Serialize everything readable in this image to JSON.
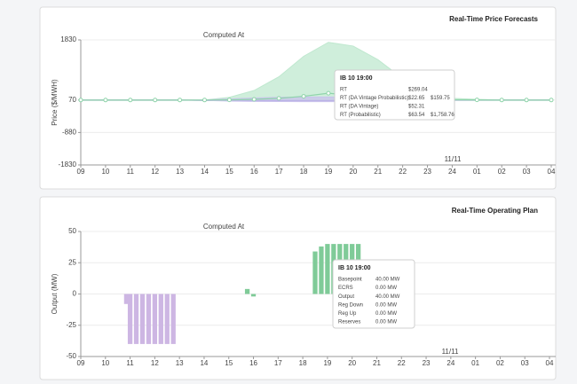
{
  "chart_data": [
    {
      "type": "line",
      "title": "Real-Time Price Forecasts",
      "ylabel": "Price ($/MWH)",
      "annotation": "Computed At",
      "date_label": "11/11",
      "ylim": [
        -1830,
        1830
      ],
      "yticks": [
        1830,
        70,
        -880,
        -1830
      ],
      "grid": true,
      "xlim": [
        9,
        28
      ],
      "xticks": [
        {
          "value": 9,
          "label": "09"
        },
        10,
        11,
        12,
        13,
        14,
        15,
        16,
        17,
        18,
        19,
        20,
        21,
        22,
        23,
        24,
        {
          "value": 25,
          "label": "01"
        },
        {
          "value": 26,
          "label": "02"
        },
        {
          "value": 27,
          "label": "03"
        },
        {
          "value": 28,
          "label": "04"
        }
      ],
      "x": [
        9,
        10,
        11,
        12,
        13,
        14,
        15,
        16,
        17,
        18,
        19,
        20,
        21,
        22,
        23,
        24,
        25,
        26,
        27,
        28
      ],
      "series": [
        {
          "color": "#8fd4aa",
          "markers": true,
          "values": [
            70,
            70,
            70,
            70,
            70,
            70,
            75,
            90,
            120,
            180,
            269.04,
            200,
            150,
            110,
            90,
            80,
            75,
            70,
            70,
            70
          ]
        },
        {
          "color": "#c9c2ec",
          "values": [
            70,
            70,
            70,
            70,
            70,
            75,
            100,
            130,
            150,
            160,
            159.75,
            150,
            120,
            90,
            75,
            70,
            70,
            70,
            70,
            70
          ],
          "low": [
            70,
            70,
            70,
            70,
            70,
            60,
            40,
            30,
            25,
            22,
            22.65,
            25,
            35,
            50,
            65,
            70,
            70,
            70,
            70,
            70
          ]
        },
        {
          "color": "#8a7fd1",
          "values": [
            70,
            70,
            70,
            70,
            70,
            60,
            55,
            52,
            52,
            52,
            52.31,
            55,
            60,
            65,
            70,
            70,
            70,
            70,
            70,
            70
          ]
        },
        {
          "color": "#bfe8cf",
          "values": [
            70,
            70,
            70,
            70,
            70,
            70,
            150,
            350,
            750,
            1350,
            1758.76,
            1650,
            1250,
            700,
            300,
            120,
            90,
            70,
            70,
            70
          ],
          "low": [
            60,
            60,
            60,
            60,
            60,
            60,
            60,
            60,
            60,
            60,
            63.54,
            60,
            60,
            60,
            60,
            60,
            60,
            60,
            60,
            60
          ]
        }
      ],
      "tooltip": {
        "title": "IB 10 19:00",
        "rows": [
          {
            "label": "RT",
            "color": "#7fcf9c",
            "values": [
              "$269.04"
            ]
          },
          {
            "label": "RT (DA Vintage Probabilistic)",
            "color": "#b9b1e6",
            "values": [
              "$22.65",
              "$159.75"
            ]
          },
          {
            "label": "RT (DA Vintage)",
            "color": "#8a7fd1",
            "values": [
              "$52.31"
            ]
          },
          {
            "label": "RT (Probabilistic)",
            "color": "#a9dcbf",
            "values": [
              "$63.54",
              "$1,758.76"
            ]
          }
        ]
      }
    },
    {
      "type": "bar",
      "title": "Real-Time Operating Plan",
      "ylabel": "Output (MW)",
      "annotation": "Computed At",
      "date_label": "11/11",
      "ylim": [
        -50,
        50
      ],
      "yticks": [
        50,
        25,
        0,
        -25,
        -50
      ],
      "grid": true,
      "xlim": [
        9,
        28
      ],
      "xticks": [
        {
          "value": 9,
          "label": "09"
        },
        10,
        11,
        12,
        13,
        14,
        15,
        16,
        17,
        18,
        19,
        20,
        21,
        22,
        23,
        24,
        {
          "value": 25,
          "label": "01"
        },
        {
          "value": 26,
          "label": "02"
        },
        {
          "value": 27,
          "label": "03"
        },
        {
          "value": 28,
          "label": "04"
        }
      ],
      "series": [
        {
          "color": "#cdb6e3",
          "x": [
            10.85,
            11,
            11.25,
            11.5,
            11.75,
            12,
            12.25,
            12.5,
            12.75
          ],
          "values": [
            -8,
            -40,
            -40,
            -40,
            -40,
            -40,
            -40,
            -40,
            -40
          ]
        },
        {
          "color": "#7fcb98",
          "x": [
            15.75,
            16,
            18.5,
            18.75,
            19,
            19.25,
            19.5,
            19.75,
            20,
            20.25
          ],
          "values": [
            4,
            -2,
            34,
            38,
            40,
            40,
            40,
            40,
            40,
            40
          ]
        }
      ],
      "tooltip": {
        "title": "IB 10 19:00",
        "rows": [
          {
            "label": "Basepoint",
            "color": "#5fbf85",
            "values": [
              "40.00 MW"
            ]
          },
          {
            "label": "ECRS",
            "color": "#b9a6e6",
            "values": [
              "0.00 MW"
            ]
          },
          {
            "label": "Output",
            "color": "#8a7fd1",
            "values": [
              "40.00 MW"
            ]
          },
          {
            "label": "Reg Down",
            "color": "#e0604f",
            "values": [
              "0.00 MW"
            ]
          },
          {
            "label": "Reg Up",
            "color": "#ef9a4a",
            "values": [
              "0.00 MW"
            ]
          },
          {
            "label": "Reserves",
            "color": "#333333",
            "values": [
              "0.00 MW"
            ]
          }
        ]
      }
    }
  ]
}
